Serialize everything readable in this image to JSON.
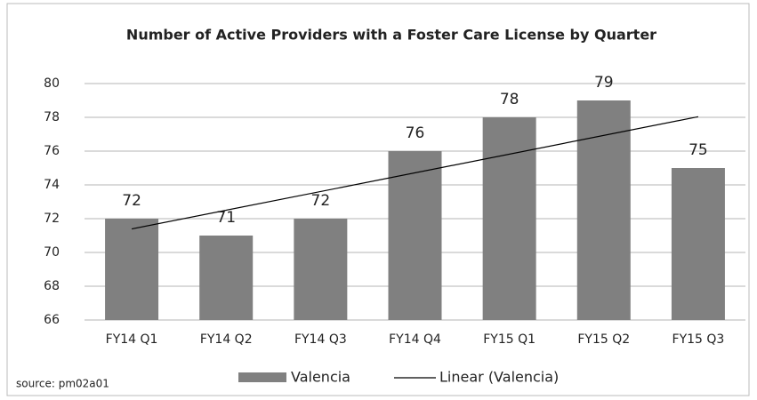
{
  "chart_data": {
    "type": "bar",
    "title": "Number of Active Providers with a Foster Care License by Quarter",
    "categories": [
      "FY14 Q1",
      "FY14 Q2",
      "FY14 Q3",
      "FY14 Q4",
      "FY15 Q1",
      "FY15 Q2",
      "FY15 Q3"
    ],
    "series": [
      {
        "name": "Valencia",
        "color": "#808080",
        "values": [
          72,
          71,
          72,
          76,
          78,
          79,
          75
        ]
      }
    ],
    "trendline": {
      "name": "Linear (Valencia)",
      "kind": "linear",
      "color": "#000000"
    },
    "ylim": [
      66,
      80
    ],
    "yticks": [
      66,
      68,
      70,
      72,
      74,
      76,
      78,
      80
    ],
    "grid": true,
    "legend": "bottom",
    "annotations": [
      "source: pm02a01"
    ]
  }
}
